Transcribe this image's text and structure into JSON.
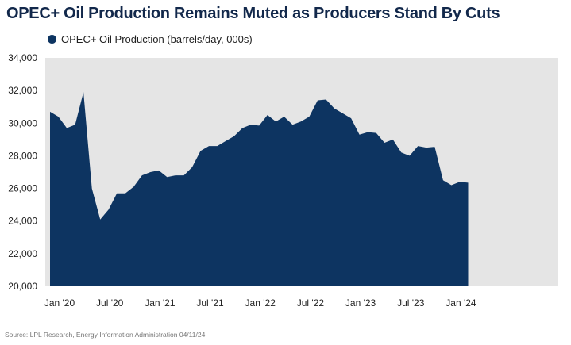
{
  "title": "OPEC+ Oil Production Remains Muted as Producers Stand By Cuts",
  "source": "Source: LPL Research, Energy Information Administration 04/11/24",
  "colors": {
    "area": "#0d3461",
    "plot_bg": "#e5e5e5",
    "title": "#12284b"
  },
  "chart_data": {
    "type": "area",
    "title": "OPEC+ Oil Production Remains Muted as Producers Stand By Cuts",
    "xlabel": "",
    "ylabel": "",
    "ylim": [
      20000,
      34000
    ],
    "yticks": [
      20000,
      22000,
      24000,
      26000,
      28000,
      30000,
      32000,
      34000
    ],
    "ytick_labels": [
      "20,000",
      "22,000",
      "24,000",
      "26,000",
      "28,000",
      "30,000",
      "32,000",
      "34,000"
    ],
    "xtick_labels": [
      "Jan '20",
      "Jul '20",
      "Jan '21",
      "Jul '21",
      "Jan '22",
      "Jul '22",
      "Jan '23",
      "Jul '23",
      "Jan '24"
    ],
    "xtick_dates": [
      "2020-01",
      "2020-07",
      "2021-01",
      "2021-07",
      "2022-01",
      "2022-07",
      "2023-01",
      "2023-07",
      "2024-01"
    ],
    "legend_position": "top-left",
    "grid": false,
    "series": [
      {
        "name": "OPEC+ Oil Production (barrels/day, 000s)",
        "x": [
          "2020-01",
          "2020-02",
          "2020-03",
          "2020-04",
          "2020-05",
          "2020-06",
          "2020-07",
          "2020-08",
          "2020-09",
          "2020-10",
          "2020-11",
          "2020-12",
          "2021-01",
          "2021-02",
          "2021-03",
          "2021-04",
          "2021-05",
          "2021-06",
          "2021-07",
          "2021-08",
          "2021-09",
          "2021-10",
          "2021-11",
          "2021-12",
          "2022-01",
          "2022-02",
          "2022-03",
          "2022-04",
          "2022-05",
          "2022-06",
          "2022-07",
          "2022-08",
          "2022-09",
          "2022-10",
          "2022-11",
          "2022-12",
          "2023-01",
          "2023-02",
          "2023-03",
          "2023-04",
          "2023-05",
          "2023-06",
          "2023-07",
          "2023-08",
          "2023-09",
          "2023-10",
          "2023-11",
          "2023-12",
          "2024-01",
          "2024-02",
          "2024-03"
        ],
        "values": [
          30700,
          30400,
          29700,
          29900,
          31900,
          26000,
          24100,
          24700,
          25700,
          25700,
          26100,
          26800,
          27000,
          27100,
          26700,
          26800,
          26800,
          27300,
          28300,
          28600,
          28600,
          28900,
          29200,
          29700,
          29900,
          29850,
          30500,
          30100,
          30400,
          29900,
          30100,
          30400,
          31400,
          31450,
          30900,
          30600,
          30300,
          29300,
          29450,
          29400,
          28800,
          29000,
          28200,
          28000,
          28600,
          28500,
          28550,
          26500,
          26200,
          26400,
          26350
        ]
      }
    ]
  }
}
